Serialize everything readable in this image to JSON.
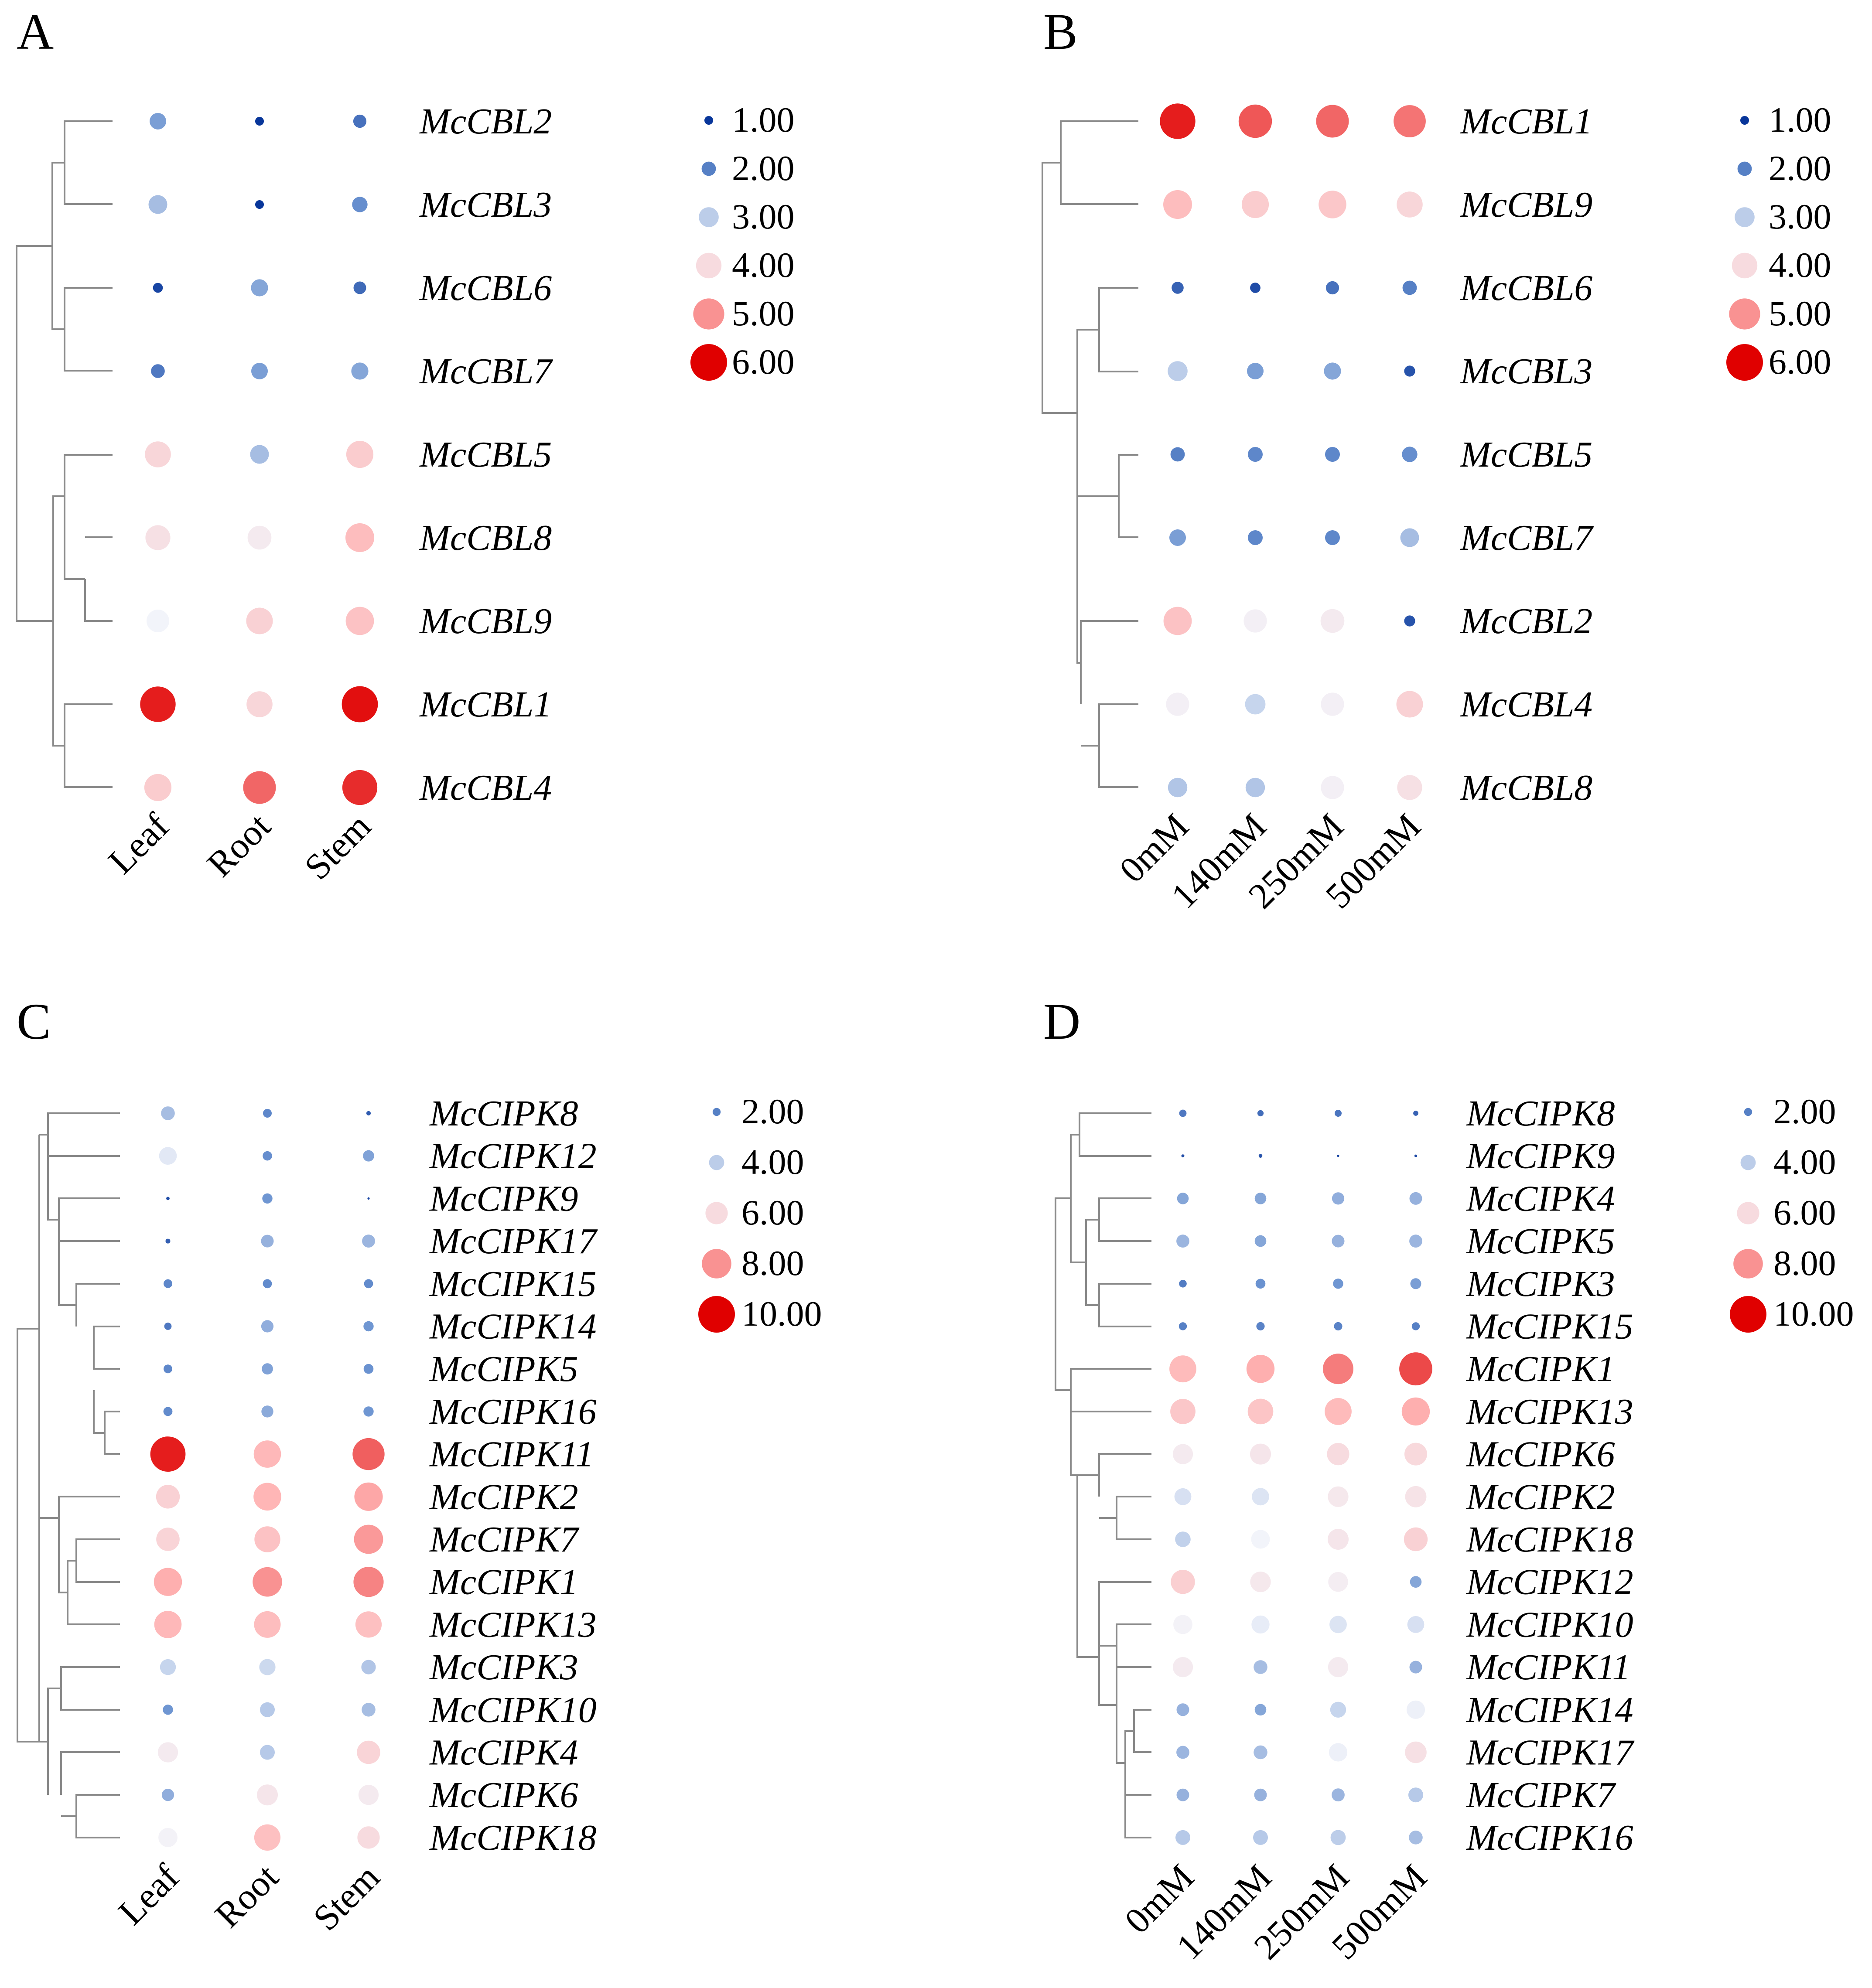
{
  "figure": {
    "panels": [
      {
        "id": "A",
        "label": "A"
      },
      {
        "id": "B",
        "label": "B"
      },
      {
        "id": "C",
        "label": "C"
      },
      {
        "id": "D",
        "label": "D"
      }
    ]
  },
  "colors": {
    "blue_dark": "#08369a",
    "blue_mid": "#6a92d0",
    "white": "#f2f4fa",
    "red_light": "#ffb6b6",
    "red_dark": "#e00000",
    "dendrogram": "#8a8a8a"
  },
  "chart_data": [
    {
      "type": "dot-heatmap",
      "panel": "A",
      "columns": [
        "Leaf",
        "Root",
        "Stem"
      ],
      "rows": [
        {
          "gene": "McCBL2",
          "values": [
            2.4,
            1.0,
            1.8
          ]
        },
        {
          "gene": "McCBL3",
          "values": [
            2.8,
            1.0,
            2.2
          ]
        },
        {
          "gene": "McCBL6",
          "values": [
            1.2,
            2.5,
            1.7
          ]
        },
        {
          "gene": "McCBL7",
          "values": [
            1.9,
            2.4,
            2.5
          ]
        },
        {
          "gene": "McCBL5",
          "values": [
            4.1,
            2.8,
            4.3
          ]
        },
        {
          "gene": "McCBL8",
          "values": [
            3.9,
            3.7,
            4.6
          ]
        },
        {
          "gene": "McCBL9",
          "values": [
            3.5,
            4.2,
            4.5
          ]
        },
        {
          "gene": "McCBL1",
          "values": [
            5.8,
            4.1,
            5.9
          ]
        },
        {
          "gene": "McCBL4",
          "values": [
            4.3,
            5.3,
            5.7
          ]
        }
      ],
      "legend": [
        "1.00",
        "2.00",
        "3.00",
        "4.00",
        "5.00",
        "6.00"
      ],
      "range": [
        1,
        6
      ]
    },
    {
      "type": "dot-heatmap",
      "panel": "B",
      "columns": [
        "0mM",
        "140mM",
        "250mM",
        "500mM"
      ],
      "rows": [
        {
          "gene": "McCBL1",
          "values": [
            5.8,
            5.4,
            5.3,
            5.2
          ]
        },
        {
          "gene": "McCBL9",
          "values": [
            4.6,
            4.3,
            4.4,
            4.1
          ]
        },
        {
          "gene": "McCBL6",
          "values": [
            1.6,
            1.3,
            1.8,
            2.0
          ]
        },
        {
          "gene": "McCBL3",
          "values": [
            3.0,
            2.4,
            2.5,
            1.4
          ]
        },
        {
          "gene": "McCBL5",
          "values": [
            2.0,
            2.1,
            2.1,
            2.2
          ]
        },
        {
          "gene": "McCBL7",
          "values": [
            2.4,
            2.1,
            2.1,
            2.8
          ]
        },
        {
          "gene": "McCBL2",
          "values": [
            4.5,
            3.6,
            3.7,
            1.4
          ]
        },
        {
          "gene": "McCBL4",
          "values": [
            3.6,
            3.1,
            3.6,
            4.2
          ]
        },
        {
          "gene": "McCBL8",
          "values": [
            2.9,
            2.9,
            3.6,
            3.9
          ]
        }
      ],
      "legend": [
        "1.00",
        "2.00",
        "3.00",
        "4.00",
        "5.00",
        "6.00"
      ],
      "range": [
        1,
        6
      ]
    },
    {
      "type": "dot-heatmap",
      "panel": "C",
      "columns": [
        "Leaf",
        "Root",
        "Stem"
      ],
      "rows": [
        {
          "gene": "McCIPK8",
          "values": [
            3.6,
            2.2,
            1.0
          ]
        },
        {
          "gene": "McCIPK12",
          "values": [
            4.7,
            2.4,
            2.9
          ]
        },
        {
          "gene": "McCIPK9",
          "values": [
            0.7,
            2.6,
            0.4
          ]
        },
        {
          "gene": "McCIPK17",
          "values": [
            1.1,
            3.3,
            3.4
          ]
        },
        {
          "gene": "McCIPK15",
          "values": [
            2.2,
            2.3,
            2.3
          ]
        },
        {
          "gene": "McCIPK14",
          "values": [
            1.8,
            3.2,
            2.6
          ]
        },
        {
          "gene": "McCIPK5",
          "values": [
            2.2,
            2.9,
            2.5
          ]
        },
        {
          "gene": "McCIPK16",
          "values": [
            2.3,
            3.1,
            2.6
          ]
        },
        {
          "gene": "McCIPK11",
          "values": [
            9.6,
            7.4,
            8.7
          ]
        },
        {
          "gene": "McCIPK2",
          "values": [
            6.4,
            7.5,
            7.7
          ]
        },
        {
          "gene": "McCIPK7",
          "values": [
            6.3,
            7.0,
            7.9
          ]
        },
        {
          "gene": "McCIPK1",
          "values": [
            7.6,
            8.0,
            8.2
          ]
        },
        {
          "gene": "McCIPK13",
          "values": [
            7.4,
            7.2,
            7.1
          ]
        },
        {
          "gene": "McCIPK3",
          "values": [
            4.2,
            4.3,
            3.8
          ]
        },
        {
          "gene": "McCIPK10",
          "values": [
            2.6,
            3.9,
            3.6
          ]
        },
        {
          "gene": "McCIPK4",
          "values": [
            5.4,
            3.9,
            6.3
          ]
        },
        {
          "gene": "McCIPK6",
          "values": [
            3.2,
            5.6,
            5.4
          ]
        },
        {
          "gene": "McCIPK18",
          "values": [
            5.1,
            7.1,
            6.0
          ]
        }
      ],
      "legend": [
        "2.00",
        "4.00",
        "6.00",
        "8.00",
        "10.00"
      ],
      "range": [
        0,
        10
      ]
    },
    {
      "type": "dot-heatmap",
      "panel": "D",
      "columns": [
        "0mM",
        "140mM",
        "250mM",
        "500mM"
      ],
      "rows": [
        {
          "gene": "McCIPK8",
          "values": [
            1.8,
            1.5,
            1.7,
            1.2
          ]
        },
        {
          "gene": "McCIPK9",
          "values": [
            0.6,
            0.8,
            0.4,
            0.5
          ]
        },
        {
          "gene": "McCIPK4",
          "values": [
            3.0,
            3.0,
            3.2,
            3.3
          ]
        },
        {
          "gene": "McCIPK5",
          "values": [
            3.4,
            3.0,
            3.3,
            3.4
          ]
        },
        {
          "gene": "McCIPK3",
          "values": [
            1.9,
            2.5,
            2.6,
            2.8
          ]
        },
        {
          "gene": "McCIPK15",
          "values": [
            2.0,
            2.1,
            2.1,
            2.0
          ]
        },
        {
          "gene": "McCIPK1",
          "values": [
            7.3,
            7.6,
            8.3,
            9.0
          ]
        },
        {
          "gene": "McCIPK13",
          "values": [
            6.8,
            6.9,
            7.3,
            7.6
          ]
        },
        {
          "gene": "McCIPK6",
          "values": [
            5.4,
            5.6,
            6.0,
            6.1
          ]
        },
        {
          "gene": "McCIPK2",
          "values": [
            4.5,
            4.6,
            5.5,
            5.7
          ]
        },
        {
          "gene": "McCIPK18",
          "values": [
            4.1,
            5.0,
            5.6,
            6.4
          ]
        },
        {
          "gene": "McCIPK12",
          "values": [
            6.5,
            5.5,
            5.3,
            3.0
          ]
        },
        {
          "gene": "McCIPK10",
          "values": [
            5.1,
            4.8,
            4.6,
            4.5
          ]
        },
        {
          "gene": "McCIPK11",
          "values": [
            5.4,
            3.6,
            5.4,
            3.3
          ]
        },
        {
          "gene": "McCIPK14",
          "values": [
            3.3,
            3.0,
            4.2,
            4.9
          ]
        },
        {
          "gene": "McCIPK17",
          "values": [
            3.4,
            3.6,
            4.9,
            5.8
          ]
        },
        {
          "gene": "McCIPK7",
          "values": [
            3.3,
            3.3,
            3.4,
            3.9
          ]
        },
        {
          "gene": "McCIPK16",
          "values": [
            3.9,
            3.9,
            4.0,
            3.6
          ]
        }
      ],
      "legend": [
        "2.00",
        "4.00",
        "6.00",
        "8.00",
        "10.00"
      ],
      "range": [
        0,
        10
      ]
    }
  ]
}
